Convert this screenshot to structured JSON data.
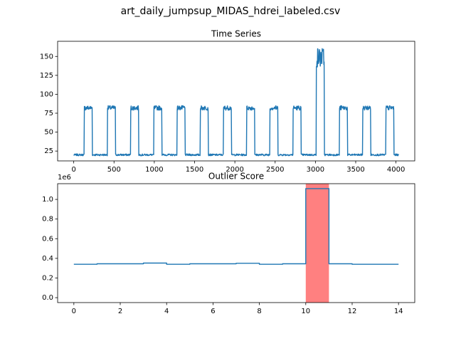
{
  "figure": {
    "title": "art_daily_jumpsup_MIDAS_hdrei_labeled.csv"
  },
  "chart_data": [
    {
      "type": "line",
      "title": "Time Series",
      "xlabel": "",
      "ylabel": "",
      "xlim": [
        -200,
        4233
      ],
      "ylim": [
        12,
        170
      ],
      "xticks": [
        0,
        500,
        1000,
        1500,
        2000,
        2500,
        3000,
        3500,
        4000
      ],
      "yticks": [
        25,
        50,
        75,
        100,
        125,
        150
      ],
      "color": "#1f77b4",
      "grid": false,
      "pattern": {
        "baseline": 20,
        "plateau": 82,
        "plateau_noise": 6,
        "cycle_starts": [
          130,
          418,
          706,
          994,
          1282,
          1570,
          1858,
          2146,
          2434,
          2722,
          3010,
          3298,
          3586,
          3874
        ],
        "plateau_length": 100,
        "jump_plateau": {
          "start": 3010,
          "end": 3110,
          "low": 135,
          "high": 162
        },
        "x_end": 4032
      }
    },
    {
      "type": "line",
      "title": "Outlier Score",
      "xlabel": "",
      "ylabel": "",
      "y_scale_note": "1e6",
      "xlim": [
        -0.7,
        14.7
      ],
      "ylim": [
        -0.05,
        1.16
      ],
      "xticks": [
        0,
        2,
        4,
        6,
        8,
        10,
        12,
        14
      ],
      "yticks": [
        0.0,
        0.2,
        0.4,
        0.6,
        0.8,
        1.0
      ],
      "color": "#1f77b4",
      "grid": false,
      "step_x": [
        0,
        1,
        2,
        3,
        4,
        5,
        6,
        7,
        8,
        9,
        10,
        11,
        12,
        13,
        14
      ],
      "step_y": [
        0.34,
        0.345,
        0.345,
        0.352,
        0.34,
        0.345,
        0.345,
        0.35,
        0.34,
        0.345,
        1.11,
        0.345,
        0.34,
        0.34,
        0.34
      ],
      "highlight": {
        "x_start": 10,
        "x_end": 11,
        "color": "#ff8080"
      }
    }
  ]
}
